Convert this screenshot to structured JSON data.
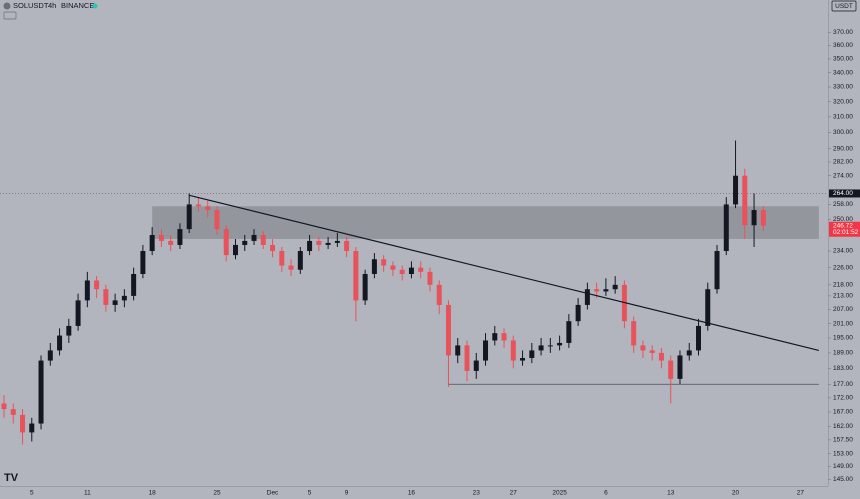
{
  "chart_data": {
    "type": "candlestick",
    "symbol": "SOLUSDT",
    "interval": "4h",
    "exchange": "BINANCE",
    "currency": "USDT",
    "categories": [
      null,
      null,
      null,
      "5",
      null,
      null,
      null,
      null,
      null,
      "11",
      null,
      null,
      null,
      null,
      null,
      null,
      "18",
      null,
      null,
      null,
      null,
      null,
      null,
      "25",
      null,
      null,
      null,
      null,
      null,
      "Dec",
      null,
      null,
      null,
      "5",
      null,
      null,
      null,
      "9",
      null,
      null,
      null,
      null,
      null,
      null,
      "16",
      null,
      null,
      null,
      null,
      null,
      null,
      "23",
      null,
      null,
      null,
      "27",
      null,
      null,
      null,
      null,
      "2025",
      null,
      null,
      null,
      null,
      "6",
      null,
      null,
      null,
      null,
      null,
      null,
      "13",
      null,
      null,
      null,
      null,
      null,
      null,
      "20",
      null,
      null,
      null,
      null,
      null,
      null,
      "27",
      null,
      null
    ],
    "open": [
      170,
      168,
      166,
      160,
      163,
      186,
      190,
      196,
      200,
      211,
      220,
      216,
      209,
      211,
      213,
      223,
      234,
      242,
      239,
      237,
      245,
      258,
      257,
      255,
      245,
      232,
      237,
      239,
      242,
      237,
      234,
      227,
      225,
      234,
      239,
      237,
      238,
      239,
      234,
      211,
      223,
      230,
      227,
      225,
      223,
      226,
      224,
      218,
      209,
      188,
      192,
      182,
      186,
      194,
      197,
      194,
      186,
      187,
      190,
      192,
      192,
      193,
      202,
      209,
      216,
      215,
      216,
      218,
      202,
      192,
      190,
      189,
      186,
      179,
      188,
      190,
      200,
      216,
      234,
      258,
      274,
      247,
      255,
      null,
      null,
      null,
      null,
      null,
      null
    ],
    "high": [
      173,
      170,
      168,
      165,
      188,
      193,
      199,
      203,
      214,
      224,
      222,
      218,
      214,
      216,
      226,
      237,
      246,
      245,
      242,
      248,
      264,
      262,
      260,
      257,
      247,
      240,
      242,
      245,
      244,
      240,
      236,
      230,
      236,
      242,
      241,
      241,
      243,
      241,
      236,
      225,
      233,
      232,
      229,
      227,
      229,
      229,
      226,
      220,
      211,
      195,
      194,
      189,
      197,
      200,
      199,
      196,
      190,
      193,
      195,
      195,
      196,
      205,
      212,
      219,
      219,
      221,
      222,
      220,
      204,
      194,
      192,
      191,
      188,
      190,
      193,
      203,
      219,
      237,
      262,
      295,
      278,
      264,
      257,
      null,
      null,
      null,
      null,
      null,
      null
    ],
    "low": [
      165,
      163,
      156,
      157,
      161,
      184,
      188,
      193,
      198,
      208,
      212,
      206,
      206,
      208,
      211,
      221,
      232,
      236,
      234,
      235,
      243,
      254,
      251,
      242,
      229,
      230,
      234,
      237,
      235,
      231,
      224,
      222,
      223,
      232,
      234,
      235,
      236,
      231,
      202,
      209,
      221,
      224,
      222,
      220,
      221,
      221,
      215,
      205,
      176,
      185,
      178,
      179,
      184,
      192,
      191,
      183,
      184,
      185,
      188,
      189,
      190,
      191,
      200,
      207,
      212,
      213,
      214,
      199,
      189,
      187,
      186,
      183,
      170,
      177,
      186,
      188,
      198,
      214,
      232,
      256,
      240,
      236,
      244,
      null,
      null,
      null,
      null,
      null,
      null
    ],
    "close": [
      168,
      166,
      160,
      163,
      186,
      190,
      196,
      200,
      211,
      220,
      216,
      209,
      211,
      213,
      223,
      234,
      242,
      239,
      237,
      245,
      258,
      257,
      255,
      245,
      232,
      237,
      239,
      242,
      237,
      234,
      227,
      225,
      234,
      239,
      237,
      238,
      239,
      234,
      211,
      223,
      230,
      227,
      225,
      223,
      226,
      224,
      218,
      209,
      188,
      192,
      182,
      186,
      194,
      197,
      194,
      186,
      187,
      190,
      192,
      192,
      193,
      202,
      209,
      216,
      215,
      216,
      218,
      202,
      192,
      190,
      189,
      186,
      179,
      188,
      190,
      200,
      216,
      234,
      258,
      274,
      247,
      255,
      246.72,
      null,
      null,
      null,
      null,
      null,
      null
    ],
    "up_color": "#131722",
    "down_color": "#e8525a",
    "ylim": [
      143,
      396
    ],
    "log_scale": true,
    "grid": false,
    "yticks": [
      {
        "value": 370,
        "label": "370.00"
      },
      {
        "value": 360,
        "label": "360.00"
      },
      {
        "value": 350,
        "label": "350.00"
      },
      {
        "value": 340,
        "label": "340.00"
      },
      {
        "value": 330,
        "label": "330.00"
      },
      {
        "value": 320,
        "label": "320.00"
      },
      {
        "value": 310,
        "label": "310.00"
      },
      {
        "value": 300,
        "label": "300.00"
      },
      {
        "value": 290,
        "label": "290.00"
      },
      {
        "value": 282,
        "label": "282.00"
      },
      {
        "value": 274,
        "label": "274.00"
      },
      {
        "value": 258,
        "label": "258.00"
      },
      {
        "value": 250,
        "label": "250.00"
      },
      {
        "value": 234,
        "label": "234.00"
      },
      {
        "value": 226,
        "label": "226.00"
      },
      {
        "value": 218,
        "label": "218.00"
      },
      {
        "value": 213,
        "label": "213.00"
      },
      {
        "value": 207,
        "label": "207.00"
      },
      {
        "value": 201,
        "label": "201.00"
      },
      {
        "value": 195,
        "label": "195.00"
      },
      {
        "value": 189,
        "label": "189.00"
      },
      {
        "value": 183,
        "label": "183.00"
      },
      {
        "value": 177,
        "label": "177.00"
      },
      {
        "value": 172,
        "label": "172.00"
      },
      {
        "value": 167,
        "label": "167.00"
      },
      {
        "value": 162,
        "label": "162.00"
      },
      {
        "value": 157.5,
        "label": "157.50"
      },
      {
        "value": 153,
        "label": "153.00"
      },
      {
        "value": 149,
        "label": "149.00"
      },
      {
        "value": 145,
        "label": "145.00"
      }
    ],
    "zone": {
      "x": [
        16,
        88
      ],
      "y": [
        240,
        257
      ],
      "color": "#8e9098"
    },
    "trendline": {
      "x": [
        20,
        88
      ],
      "y": [
        263,
        190
      ],
      "color": "#131722"
    },
    "support": {
      "x": [
        48,
        88
      ],
      "y": [
        177,
        177
      ],
      "color": "#4a4d55"
    },
    "price_labels": [
      {
        "value": 264,
        "label": "264.00",
        "color": "#131722"
      },
      {
        "value": 246.72,
        "label": "246.72",
        "countdown": "02:01:52",
        "color": "#f23645"
      }
    ]
  }
}
